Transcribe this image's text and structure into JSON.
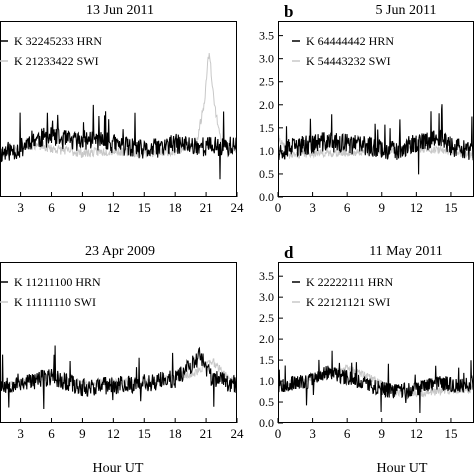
{
  "xlabel": "Hour UT",
  "colors": {
    "hrn": "#000000",
    "swi": "#c8c8c8",
    "axis": "#000000"
  },
  "chart_data": [
    {
      "type": "line",
      "panel": "top-left",
      "letter": "",
      "title": "13 Jun 2011",
      "xlim": [
        1,
        24
      ],
      "ylim": [
        0,
        3.6
      ],
      "xticks": [
        3,
        6,
        9,
        12,
        15,
        18,
        21,
        24
      ],
      "yticks": [],
      "legend_position": "top-left",
      "series": [
        {
          "name": "K 32245233 HRN",
          "role": "hrn",
          "seed": 11,
          "profile": [
            [
              1,
              0.95
            ],
            [
              3,
              1.05
            ],
            [
              4,
              1.25
            ],
            [
              6,
              1.3
            ],
            [
              8,
              1.2
            ],
            [
              10,
              1.25
            ],
            [
              12,
              1.15
            ],
            [
              15,
              1.0
            ],
            [
              18,
              1.15
            ],
            [
              21,
              1.1
            ],
            [
              24,
              1.1
            ]
          ],
          "noise": 0.22
        },
        {
          "name": "K 21233422 SWI",
          "role": "swi",
          "seed": 23,
          "profile": [
            [
              1,
              0.9
            ],
            [
              4,
              1.15
            ],
            [
              6,
              1.05
            ],
            [
              9,
              0.95
            ],
            [
              12,
              1.0
            ],
            [
              15,
              0.95
            ],
            [
              18,
              1.0
            ],
            [
              20,
              1.1
            ],
            [
              20.8,
              2.0
            ],
            [
              21.3,
              3.2
            ],
            [
              21.8,
              2.0
            ],
            [
              22.5,
              1.2
            ],
            [
              24,
              1.0
            ]
          ],
          "noise": 0.1
        }
      ]
    },
    {
      "type": "line",
      "panel": "top-right",
      "letter": "b",
      "title": "5 Jun 2011",
      "xlim": [
        0,
        17
      ],
      "ylim": [
        0,
        3.6
      ],
      "xticks": [
        0,
        3,
        6,
        9,
        12,
        15
      ],
      "yticks": [
        0.0,
        0.5,
        1.0,
        1.5,
        2.0,
        2.5,
        3.0,
        3.5
      ],
      "legend_position": "top-right",
      "series": [
        {
          "name": "K 64444442 HRN",
          "role": "hrn",
          "seed": 37,
          "profile": [
            [
              0,
              1.0
            ],
            [
              2,
              1.1
            ],
            [
              4,
              1.2
            ],
            [
              6,
              1.15
            ],
            [
              8,
              1.1
            ],
            [
              10,
              1.0
            ],
            [
              12,
              1.15
            ],
            [
              14,
              1.3
            ],
            [
              15,
              1.1
            ],
            [
              17,
              0.95
            ]
          ],
          "noise": 0.22
        },
        {
          "name": "K 54443232 SWI",
          "role": "swi",
          "seed": 41,
          "profile": [
            [
              0,
              1.3
            ],
            [
              1,
              0.9
            ],
            [
              3,
              0.95
            ],
            [
              6,
              0.95
            ],
            [
              9,
              1.0
            ],
            [
              12,
              1.05
            ],
            [
              15,
              1.0
            ],
            [
              17,
              0.9
            ]
          ],
          "noise": 0.08
        }
      ]
    },
    {
      "type": "line",
      "panel": "bottom-left",
      "letter": "",
      "title": "23 Apr 2009",
      "xlim": [
        1,
        24
      ],
      "ylim": [
        0,
        3.6
      ],
      "xticks": [
        3,
        6,
        9,
        12,
        15,
        18,
        21,
        24
      ],
      "yticks": [],
      "legend_position": "top-left",
      "series": [
        {
          "name": "K 11211100 HRN",
          "role": "hrn",
          "seed": 53,
          "profile": [
            [
              1,
              0.9
            ],
            [
              4,
              1.0
            ],
            [
              6,
              1.1
            ],
            [
              9,
              0.85
            ],
            [
              12,
              0.9
            ],
            [
              15,
              0.95
            ],
            [
              18,
              1.05
            ],
            [
              20.5,
              1.6
            ],
            [
              21.5,
              1.1
            ],
            [
              24,
              0.9
            ]
          ],
          "noise": 0.22
        },
        {
          "name": "K 11111110 SWI",
          "role": "swi",
          "seed": 59,
          "profile": [
            [
              1,
              0.85
            ],
            [
              4,
              1.0
            ],
            [
              6,
              1.15
            ],
            [
              9,
              0.9
            ],
            [
              12,
              1.0
            ],
            [
              15,
              0.95
            ],
            [
              18,
              1.1
            ],
            [
              20,
              1.2
            ],
            [
              21.5,
              1.5
            ],
            [
              23,
              1.1
            ],
            [
              24,
              1.0
            ]
          ],
          "noise": 0.1
        }
      ]
    },
    {
      "type": "line",
      "panel": "bottom-right",
      "letter": "d",
      "title": "11 May 2011",
      "xlim": [
        0,
        17
      ],
      "ylim": [
        0,
        3.6
      ],
      "xticks": [
        0,
        3,
        6,
        9,
        12,
        15
      ],
      "yticks": [
        0.0,
        0.5,
        1.0,
        1.5,
        2.0,
        2.5,
        3.0,
        3.5
      ],
      "legend_position": "top-right",
      "series": [
        {
          "name": "K 22222111 HRN",
          "role": "hrn",
          "seed": 67,
          "profile": [
            [
              0,
              0.9
            ],
            [
              3,
              1.0
            ],
            [
              4,
              1.2
            ],
            [
              6,
              1.1
            ],
            [
              8,
              0.9
            ],
            [
              10,
              0.75
            ],
            [
              12,
              0.8
            ],
            [
              14,
              0.95
            ],
            [
              16,
              0.9
            ],
            [
              17,
              0.95
            ]
          ],
          "noise": 0.18
        },
        {
          "name": "K 22121121 SWI",
          "role": "swi",
          "seed": 71,
          "profile": [
            [
              0,
              0.85
            ],
            [
              3,
              1.1
            ],
            [
              6,
              1.3
            ],
            [
              8,
              1.1
            ],
            [
              10,
              0.75
            ],
            [
              12,
              0.7
            ],
            [
              14,
              0.75
            ],
            [
              16,
              0.8
            ],
            [
              17,
              0.8
            ]
          ],
          "noise": 0.09
        }
      ]
    }
  ]
}
